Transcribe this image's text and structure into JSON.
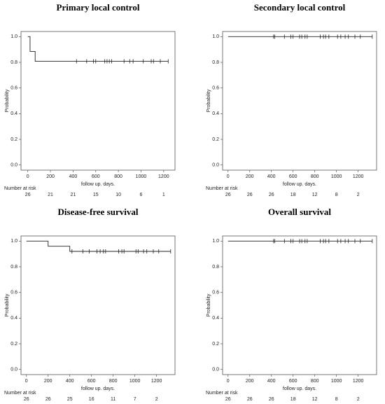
{
  "chart_data": [
    {
      "type": "step",
      "title": "Primary local control",
      "x_label": "follow up. days.",
      "y_label": "Probability",
      "x": [
        0,
        20,
        20,
        65,
        65,
        1240
      ],
      "values": [
        1.0,
        1.0,
        0.885,
        0.885,
        0.808,
        0.808
      ],
      "censored": {
        "x": [
          430,
          520,
          580,
          600,
          680,
          700,
          720,
          740,
          850,
          900,
          930,
          1020,
          1090,
          1110,
          1170,
          1240
        ],
        "values": [
          0.808,
          0.808,
          0.808,
          0.808,
          0.808,
          0.808,
          0.808,
          0.808,
          0.808,
          0.808,
          0.808,
          0.808,
          0.808,
          0.808,
          0.808,
          0.808
        ]
      },
      "xlim": [
        -60,
        1300
      ],
      "xticks": [
        0,
        200,
        400,
        600,
        800,
        1000,
        1200
      ],
      "ylim": [
        -0.04,
        1.04
      ],
      "yticks": [
        {
          "value": 0,
          "label": "0.0"
        },
        0.2,
        0.4,
        0.6,
        0.8,
        {
          "value": 1,
          "label": "1.0"
        }
      ],
      "risk_label": "Number at risk",
      "risk_x": [
        0,
        200,
        400,
        600,
        800,
        1000,
        1200
      ],
      "risk_values": [
        26,
        21,
        21,
        15,
        10,
        6,
        1
      ]
    },
    {
      "type": "step",
      "title": "Secondary local control",
      "x_label": "follow up. days.",
      "y_label": "Probability",
      "x": [
        0,
        1330
      ],
      "values": [
        1.0,
        1.0
      ],
      "censored": {
        "x": [
          420,
          430,
          520,
          580,
          600,
          660,
          680,
          710,
          730,
          850,
          880,
          900,
          930,
          1010,
          1040,
          1080,
          1110,
          1170,
          1220,
          1330
        ],
        "values": [
          1,
          1,
          1,
          1,
          1,
          1,
          1,
          1,
          1,
          1,
          1,
          1,
          1,
          1,
          1,
          1,
          1,
          1,
          1,
          1
        ]
      },
      "xlim": [
        -50,
        1370
      ],
      "xticks": [
        0,
        200,
        400,
        600,
        800,
        1000,
        1200
      ],
      "ylim": [
        -0.04,
        1.04
      ],
      "yticks": [
        {
          "value": 0,
          "label": "0.0"
        },
        0.2,
        0.4,
        0.6,
        0.8,
        {
          "value": 1,
          "label": "1.0"
        }
      ],
      "risk_label": "Number at risk",
      "risk_x": [
        0,
        200,
        400,
        600,
        800,
        1000,
        1200
      ],
      "risk_values": [
        26,
        26,
        26,
        18,
        12,
        8,
        2
      ]
    },
    {
      "type": "step",
      "title": "Disease-free survival",
      "x_label": "follow up. days.",
      "y_label": "Probability",
      "x": [
        0,
        200,
        200,
        400,
        400,
        1330
      ],
      "values": [
        1.0,
        1.0,
        0.96,
        0.96,
        0.92,
        0.92
      ],
      "censored": {
        "x": [
          420,
          520,
          580,
          650,
          680,
          710,
          730,
          850,
          880,
          900,
          1010,
          1030,
          1080,
          1110,
          1170,
          1220,
          1330
        ],
        "values": [
          0.92,
          0.92,
          0.92,
          0.92,
          0.92,
          0.92,
          0.92,
          0.92,
          0.92,
          0.92,
          0.92,
          0.92,
          0.92,
          0.92,
          0.92,
          0.92,
          0.92
        ]
      },
      "xlim": [
        -50,
        1370
      ],
      "xticks": [
        0,
        200,
        400,
        600,
        800,
        1000,
        1200
      ],
      "ylim": [
        -0.04,
        1.04
      ],
      "yticks": [
        {
          "value": 0,
          "label": "0.0"
        },
        0.2,
        0.4,
        0.6,
        0.8,
        {
          "value": 1,
          "label": "1.0"
        }
      ],
      "risk_label": "Number at risk",
      "risk_x": [
        0,
        200,
        400,
        600,
        800,
        1000,
        1200
      ],
      "risk_values": [
        26,
        26,
        25,
        16,
        11,
        7,
        2
      ]
    },
    {
      "type": "step",
      "title": "Overall survival",
      "x_label": "follow up. days.",
      "y_label": "Probability",
      "x": [
        0,
        1330
      ],
      "values": [
        1.0,
        1.0
      ],
      "censored": {
        "x": [
          420,
          430,
          520,
          580,
          600,
          660,
          680,
          710,
          730,
          850,
          880,
          900,
          930,
          1010,
          1040,
          1080,
          1110,
          1170,
          1220,
          1330
        ],
        "values": [
          1,
          1,
          1,
          1,
          1,
          1,
          1,
          1,
          1,
          1,
          1,
          1,
          1,
          1,
          1,
          1,
          1,
          1,
          1,
          1
        ]
      },
      "xlim": [
        -50,
        1370
      ],
      "xticks": [
        0,
        200,
        400,
        600,
        800,
        1000,
        1200
      ],
      "ylim": [
        -0.04,
        1.04
      ],
      "yticks": [
        {
          "value": 0,
          "label": "0.0"
        },
        0.2,
        0.4,
        0.6,
        0.8,
        {
          "value": 1,
          "label": "1.0"
        }
      ],
      "risk_label": "Number at risk",
      "risk_x": [
        0,
        200,
        400,
        600,
        800,
        1000,
        1200
      ],
      "risk_values": [
        26,
        26,
        26,
        18,
        12,
        8,
        2
      ]
    }
  ]
}
